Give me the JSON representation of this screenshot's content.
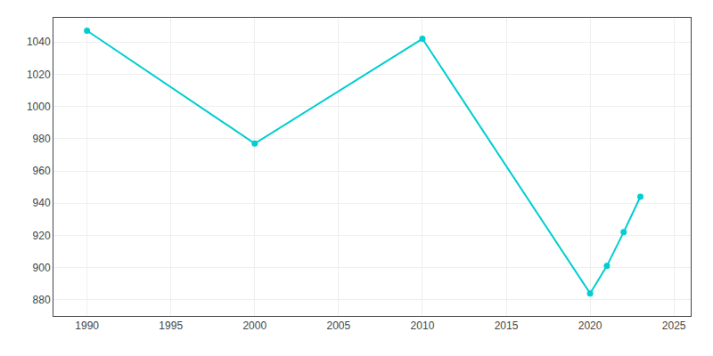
{
  "chart_data": {
    "type": "line",
    "x": [
      1990,
      2000,
      2010,
      2020,
      2021,
      2022,
      2023
    ],
    "values": [
      1047,
      977,
      1042,
      884,
      901,
      922,
      944
    ],
    "color": "#00CED1",
    "marker": "circle",
    "xlim": [
      1988,
      2026
    ],
    "ylim": [
      870,
      1055
    ],
    "xticks": [
      1990,
      1995,
      2000,
      2005,
      2010,
      2015,
      2020,
      2025
    ],
    "yticks": [
      880,
      900,
      920,
      940,
      960,
      980,
      1000,
      1020,
      1040
    ],
    "grid": true
  }
}
